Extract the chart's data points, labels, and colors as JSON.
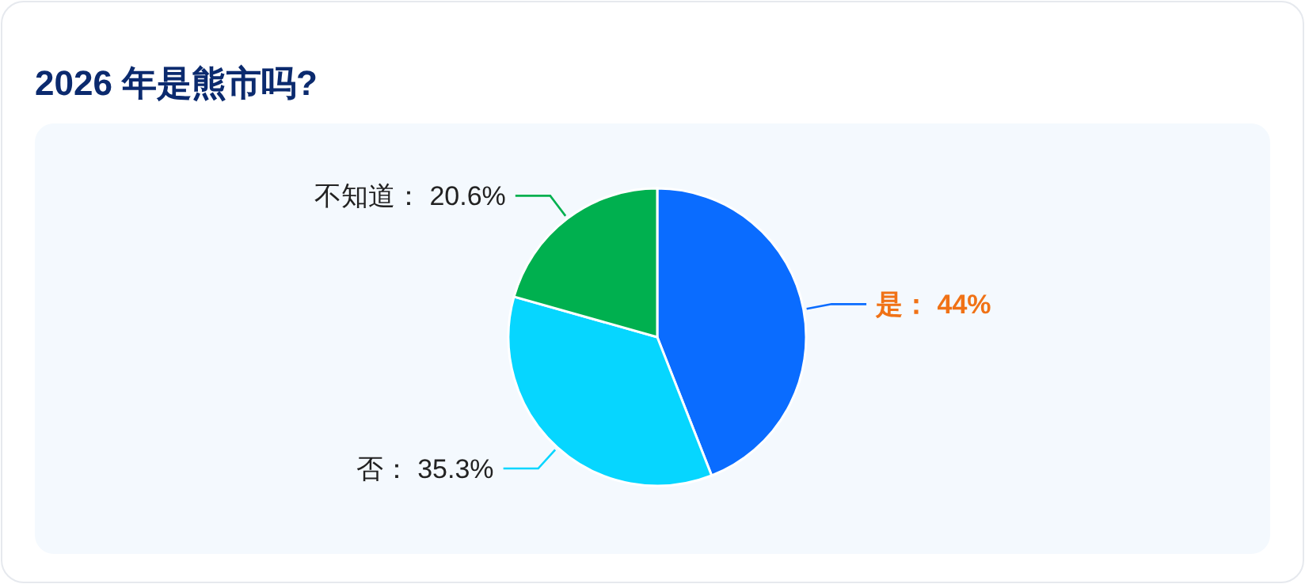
{
  "chart_data": {
    "type": "pie",
    "title": "2026 年是熊市吗?",
    "categories": [
      "是",
      "否",
      "不知道"
    ],
    "values": [
      44,
      35.3,
      20.6
    ],
    "value_labels": [
      "44%",
      "35.3%",
      "20.6%"
    ],
    "colors": [
      "#0a6cff",
      "#06d6ff",
      "#00b04f"
    ]
  }
}
